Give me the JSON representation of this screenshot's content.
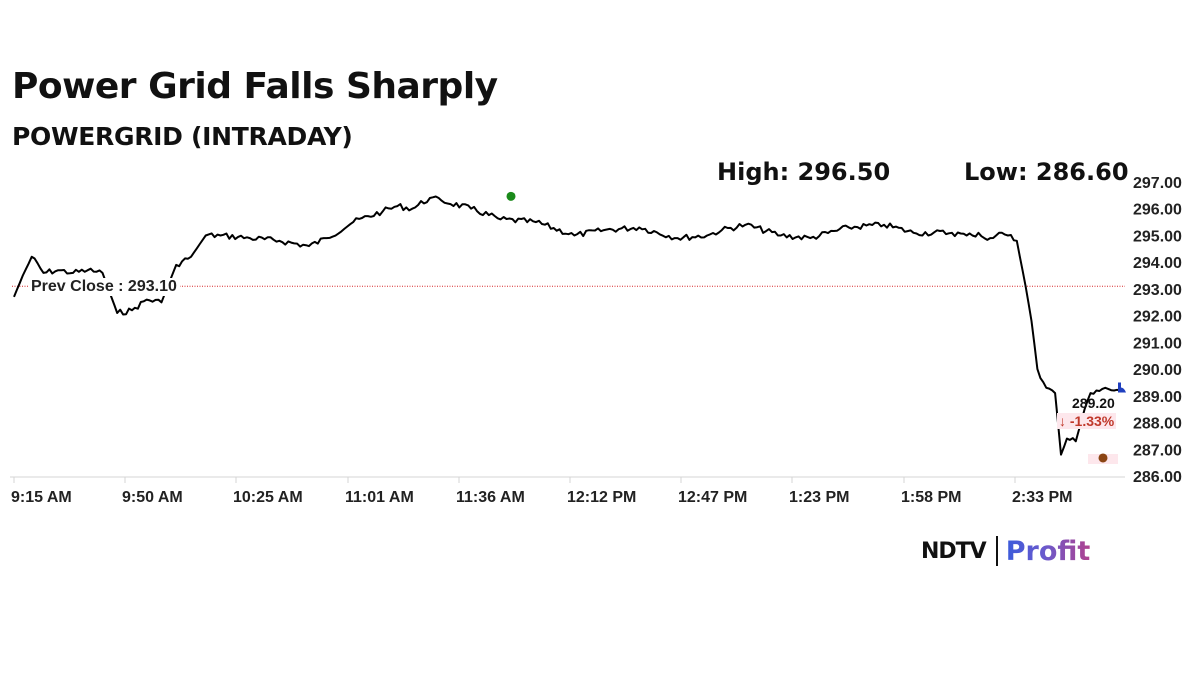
{
  "header": {
    "title": "Power Grid Falls Sharply",
    "subtitle": "POWERGRID (INTRADAY)",
    "high_label": "High: 296.50",
    "low_label": "Low: 286.60"
  },
  "annotations": {
    "prev_close_label": "Prev Close : 293.10",
    "last_price": "289.20",
    "change": "↓ -1.33%"
  },
  "brand": {
    "ndtv": "NDTV",
    "profit": "Profit"
  },
  "colors": {
    "line": "#000000",
    "prev_close_line": "#d62728",
    "high_marker": "#1a8a1a",
    "low_marker": "#8b4513",
    "last_marker": "#1f3fbf",
    "change_text": "#c0392b",
    "change_bg": "#fde7ec"
  },
  "chart_data": {
    "type": "line",
    "title": "Power Grid Falls Sharply",
    "subtitle": "POWERGRID (INTRADAY)",
    "xlabel": "",
    "ylabel": "",
    "ylim": [
      286.0,
      297.0
    ],
    "y_ticks": [
      "297.00",
      "296.00",
      "295.00",
      "294.00",
      "293.00",
      "292.00",
      "291.00",
      "290.00",
      "289.00",
      "288.00",
      "287.00",
      "286.00"
    ],
    "x_ticks": [
      "9:15 AM",
      "9:50 AM",
      "10:25 AM",
      "11:01 AM",
      "11:36 AM",
      "12:12 PM",
      "12:47 PM",
      "1:23 PM",
      "1:58 PM",
      "2:33 PM"
    ],
    "grid": false,
    "legend": null,
    "reference_lines": [
      {
        "name": "Prev Close",
        "value": 293.1,
        "style": "dotted",
        "color": "#d62728"
      }
    ],
    "high": 296.5,
    "low": 286.6,
    "last": 289.2,
    "change_pct": -1.33,
    "series": [
      {
        "name": "POWERGRID",
        "x": [
          "9:15 AM",
          "9:18 AM",
          "9:21 AM",
          "9:25 AM",
          "9:30 AM",
          "9:35 AM",
          "9:40 AM",
          "9:45 AM",
          "9:50 AM",
          "9:55 AM",
          "10:00 AM",
          "10:05 AM",
          "10:10 AM",
          "10:15 AM",
          "10:20 AM",
          "10:25 AM",
          "10:35 AM",
          "10:45 AM",
          "10:55 AM",
          "11:01 AM",
          "11:10 AM",
          "11:20 AM",
          "11:25 AM",
          "11:30 AM",
          "11:36 AM",
          "11:40 AM",
          "11:50 AM",
          "12:00 PM",
          "12:12 PM",
          "12:25 PM",
          "12:35 PM",
          "12:47 PM",
          "1:00 PM",
          "1:10 PM",
          "1:15 PM",
          "1:23 PM",
          "1:35 PM",
          "1:45 PM",
          "1:58 PM",
          "2:10 PM",
          "2:20 PM",
          "2:33 PM",
          "2:38 PM",
          "2:40 PM",
          "2:42 PM",
          "2:44 PM",
          "2:46 PM",
          "2:48 PM",
          "2:50 PM",
          "2:52 PM",
          "2:55 PM",
          "2:58 PM",
          "3:00 PM",
          "3:02 PM",
          "3:05 PM",
          "3:08 PM",
          "3:10 PM",
          "3:12 PM",
          "3:15 PM",
          "3:18 PM",
          "3:20 PM",
          "3:22 PM",
          "3:25 PM",
          "3:28 PM",
          "3:30 PM"
        ],
        "values": [
          292.7,
          293.5,
          294.2,
          293.6,
          293.7,
          293.6,
          293.7,
          293.6,
          292.1,
          292.2,
          292.6,
          292.5,
          293.9,
          294.2,
          295.0,
          295.0,
          294.9,
          294.8,
          294.6,
          294.9,
          295.5,
          295.9,
          296.1,
          296.0,
          296.4,
          296.3,
          296.0,
          295.6,
          295.5,
          295.0,
          295.2,
          295.3,
          294.9,
          295.0,
          295.2,
          295.4,
          295.0,
          294.9,
          295.3,
          295.4,
          295.1,
          295.1,
          295.0,
          295.0,
          295.1,
          294.9,
          294.9,
          295.0,
          295.1,
          295.0,
          294.8,
          293.1,
          291.8,
          290.0,
          289.3,
          289.1,
          286.8,
          287.4,
          287.3,
          288.5,
          289.1,
          289.2,
          289.3,
          289.2,
          289.2
        ]
      }
    ]
  }
}
